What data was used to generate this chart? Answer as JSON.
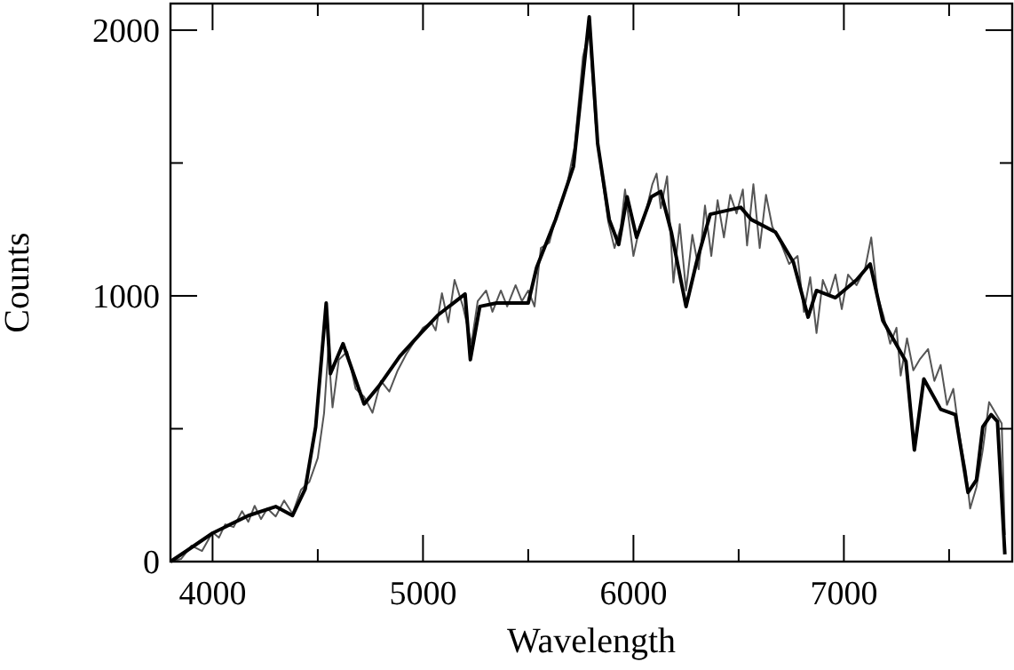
{
  "chart_data": {
    "type": "line",
    "xlabel": "Wavelength",
    "ylabel": "Counts",
    "xlim": [
      3800,
      7800
    ],
    "ylim": [
      0,
      2100
    ],
    "xticks": [
      4000,
      {
        "value": 4500,
        "label": null
      },
      5000,
      {
        "value": 5500,
        "label": null
      },
      6000,
      {
        "value": 6500,
        "label": null
      },
      7000,
      {
        "value": 7500,
        "label": null
      }
    ],
    "yticks": [
      0,
      {
        "value": 500,
        "label": null
      },
      1000,
      {
        "value": 1500,
        "label": null
      },
      2000
    ],
    "series": [
      {
        "color": "#555555",
        "x": [
          3800,
          3850,
          3900,
          3950,
          4000,
          4030,
          4060,
          4100,
          4140,
          4170,
          4200,
          4230,
          4260,
          4300,
          4340,
          4380,
          4420,
          4460,
          4500,
          4530,
          4550,
          4570,
          4600,
          4640,
          4680,
          4720,
          4760,
          4800,
          4840,
          4880,
          4920,
          4960,
          5000,
          5040,
          5060,
          5090,
          5120,
          5150,
          5190,
          5230,
          5260,
          5300,
          5330,
          5370,
          5400,
          5440,
          5470,
          5500,
          5530,
          5560,
          5600,
          5640,
          5680,
          5720,
          5760,
          5790,
          5820,
          5850,
          5880,
          5910,
          5940,
          5960,
          6000,
          6030,
          6060,
          6090,
          6110,
          6130,
          6160,
          6190,
          6220,
          6250,
          6280,
          6310,
          6340,
          6370,
          6400,
          6430,
          6460,
          6490,
          6520,
          6540,
          6570,
          6600,
          6630,
          6660,
          6700,
          6740,
          6780,
          6810,
          6840,
          6870,
          6900,
          6930,
          6960,
          6990,
          7020,
          7060,
          7100,
          7130,
          7160,
          7190,
          7220,
          7250,
          7270,
          7300,
          7330,
          7360,
          7400,
          7430,
          7460,
          7490,
          7520,
          7550,
          7580,
          7600,
          7630,
          7660,
          7690,
          7720,
          7750,
          7765
        ],
        "values": [
          0,
          10,
          60,
          40,
          110,
          90,
          140,
          130,
          190,
          150,
          210,
          160,
          200,
          170,
          230,
          180,
          270,
          300,
          390,
          560,
          800,
          580,
          760,
          790,
          650,
          620,
          560,
          680,
          640,
          720,
          780,
          830,
          880,
          900,
          870,
          1010,
          900,
          1060,
          960,
          820,
          980,
          1020,
          940,
          1020,
          960,
          1040,
          980,
          1020,
          960,
          1180,
          1200,
          1320,
          1400,
          1560,
          1900,
          2000,
          1650,
          1450,
          1280,
          1180,
          1260,
          1400,
          1150,
          1260,
          1320,
          1420,
          1460,
          1330,
          1450,
          1050,
          1270,
          1020,
          1230,
          1100,
          1340,
          1150,
          1360,
          1220,
          1380,
          1310,
          1400,
          1190,
          1420,
          1180,
          1380,
          1260,
          1200,
          1120,
          1150,
          940,
          1070,
          860,
          1060,
          1000,
          1080,
          950,
          1080,
          1040,
          1100,
          1220,
          1000,
          920,
          820,
          880,
          700,
          840,
          720,
          760,
          800,
          680,
          740,
          590,
          650,
          470,
          340,
          200,
          280,
          420,
          600,
          560,
          520,
          100
        ]
      },
      {
        "color": "#000000",
        "x": [
          3800,
          3876,
          4000,
          4170,
          4300,
          4380,
          4440,
          4490,
          4540,
          4560,
          4620,
          4720,
          4790,
          4890,
          4990,
          5070,
          5200,
          5225,
          5270,
          5350,
          5500,
          5540,
          5630,
          5715,
          5790,
          5830,
          5885,
          5930,
          5970,
          6015,
          6085,
          6130,
          6180,
          6250,
          6300,
          6365,
          6510,
          6560,
          6675,
          6760,
          6830,
          6870,
          6960,
          7060,
          7125,
          7185,
          7295,
          7335,
          7380,
          7460,
          7530,
          7590,
          7630,
          7660,
          7700,
          7730,
          7765
        ],
        "values": [
          0,
          40,
          107,
          173,
          207,
          173,
          273,
          507,
          973,
          707,
          820,
          593,
          660,
          773,
          860,
          927,
          1007,
          760,
          960,
          973,
          973,
          1107,
          1287,
          1487,
          2050,
          1573,
          1287,
          1193,
          1373,
          1220,
          1373,
          1393,
          1240,
          960,
          1127,
          1307,
          1333,
          1287,
          1240,
          1127,
          920,
          1020,
          993,
          1060,
          1120,
          907,
          753,
          420,
          687,
          573,
          553,
          260,
          307,
          507,
          553,
          527,
          27
        ]
      }
    ]
  }
}
